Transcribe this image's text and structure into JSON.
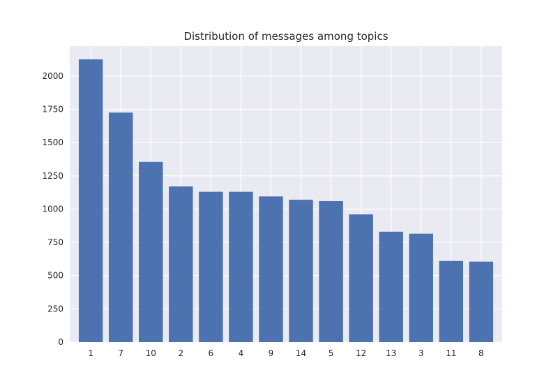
{
  "chart_data": {
    "type": "bar",
    "title": "Distribution of messages among topics",
    "xlabel": "",
    "ylabel": "",
    "categories": [
      "1",
      "7",
      "10",
      "2",
      "6",
      "4",
      "9",
      "14",
      "5",
      "12",
      "13",
      "3",
      "11",
      "8"
    ],
    "values": [
      2125,
      1725,
      1355,
      1170,
      1130,
      1130,
      1095,
      1070,
      1060,
      960,
      830,
      815,
      610,
      605
    ],
    "ylim": [
      0,
      2225
    ],
    "yticks": [
      0,
      250,
      500,
      750,
      1000,
      1250,
      1500,
      1750,
      2000
    ],
    "grid": true,
    "style": {
      "background": "#eaeaf2",
      "bar_color": "#4c72b0",
      "grid_color": "#ffffff"
    }
  }
}
